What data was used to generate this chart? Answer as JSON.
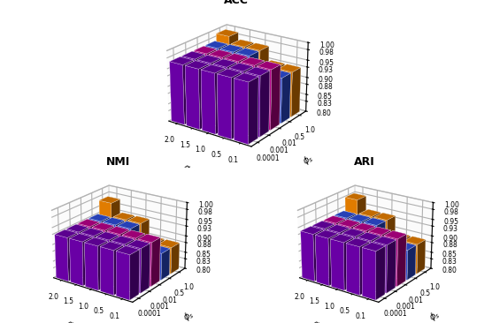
{
  "titles": [
    "ACC",
    "NMI",
    "ARI"
  ],
  "alpha0_labels": [
    "2.0",
    "1.5",
    "1.0",
    "0.5",
    "0.1"
  ],
  "phi_labels": [
    "0.0001",
    "0.001",
    "0.01",
    "0.5",
    "1.0"
  ],
  "zlim": [
    0.8,
    1.0
  ],
  "zticks": [
    0.8,
    0.83,
    0.85,
    0.88,
    0.9,
    0.93,
    0.95,
    0.98,
    1.0
  ],
  "zlabels": [
    "0.80",
    "0.83",
    "0.85",
    "0.88",
    "0.90",
    "0.93",
    "0.95",
    "0.98",
    "1.00"
  ],
  "acc_values": [
    [
      0.97,
      0.97,
      0.97,
      0.97,
      0.97
    ],
    [
      0.97,
      0.97,
      0.97,
      0.97,
      0.97
    ],
    [
      0.97,
      0.97,
      0.97,
      0.97,
      0.97
    ],
    [
      0.97,
      0.97,
      0.97,
      0.93,
      0.93
    ],
    [
      0.99,
      0.97,
      0.97,
      0.93,
      0.93
    ]
  ],
  "nmi_values": [
    [
      0.93,
      0.93,
      0.93,
      0.93,
      0.93
    ],
    [
      0.93,
      0.93,
      0.93,
      0.93,
      0.93
    ],
    [
      0.93,
      0.93,
      0.93,
      0.93,
      0.93
    ],
    [
      0.93,
      0.93,
      0.93,
      0.88,
      0.88
    ],
    [
      0.97,
      0.93,
      0.93,
      0.88,
      0.88
    ]
  ],
  "ari_values": [
    [
      0.94,
      0.94,
      0.94,
      0.94,
      0.94
    ],
    [
      0.94,
      0.94,
      0.94,
      0.94,
      0.94
    ],
    [
      0.94,
      0.94,
      0.94,
      0.94,
      0.94
    ],
    [
      0.94,
      0.94,
      0.94,
      0.89,
      0.89
    ],
    [
      0.98,
      0.94,
      0.94,
      0.89,
      0.89
    ]
  ],
  "colors_by_phi": [
    "#7700BB",
    "#7700BB",
    "#CC0099",
    "#3355EE",
    "#FF8C00"
  ],
  "elev": 22,
  "azim": -55,
  "bar_width": 0.85,
  "bar_depth": 0.85
}
